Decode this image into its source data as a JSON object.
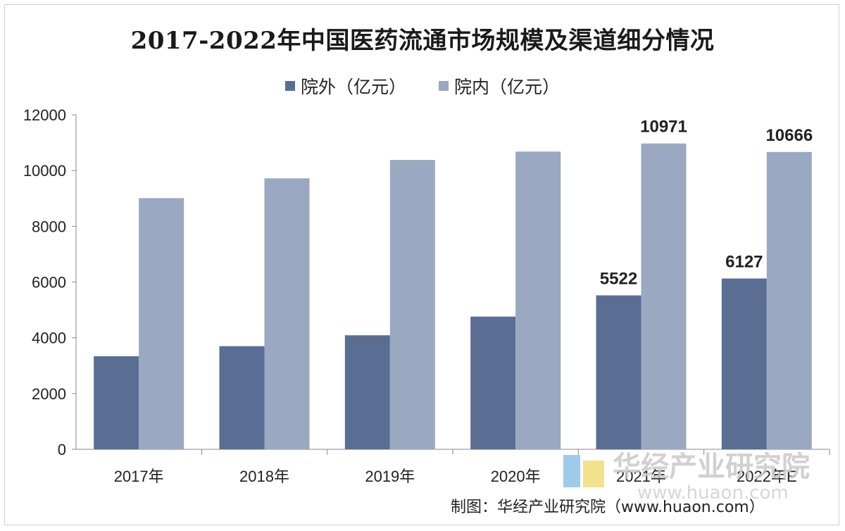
{
  "chart_data": {
    "type": "bar",
    "title": "2017-2022年中国医药流通市场规模及渠道细分情况",
    "categories": [
      "2017年",
      "2018年",
      "2019年",
      "2020年",
      "2021年",
      "2022年E"
    ],
    "series": [
      {
        "name": "院外（亿元）",
        "color": "#5a6e93",
        "values": [
          3340,
          3700,
          4090,
          4760,
          5522,
          6127
        ],
        "labels": [
          "",
          "",
          "",
          "",
          "5522",
          "6127"
        ]
      },
      {
        "name": "院内（亿元）",
        "color": "#9aa8c2",
        "values": [
          9010,
          9720,
          10380,
          10680,
          10971,
          10666
        ],
        "labels": [
          "",
          "",
          "",
          "",
          "10971",
          "10666"
        ]
      }
    ],
    "yticks": [
      "12000",
      "10000",
      "8000",
      "6000",
      "4000",
      "2000",
      "0"
    ],
    "ylim": [
      0,
      12000
    ],
    "grid": false,
    "legend_position": "top"
  },
  "source": "制图：华经产业研究院（www.huaon.com）",
  "watermark": {
    "text": "华经产业研究院",
    "url": "www.huaon.com"
  }
}
